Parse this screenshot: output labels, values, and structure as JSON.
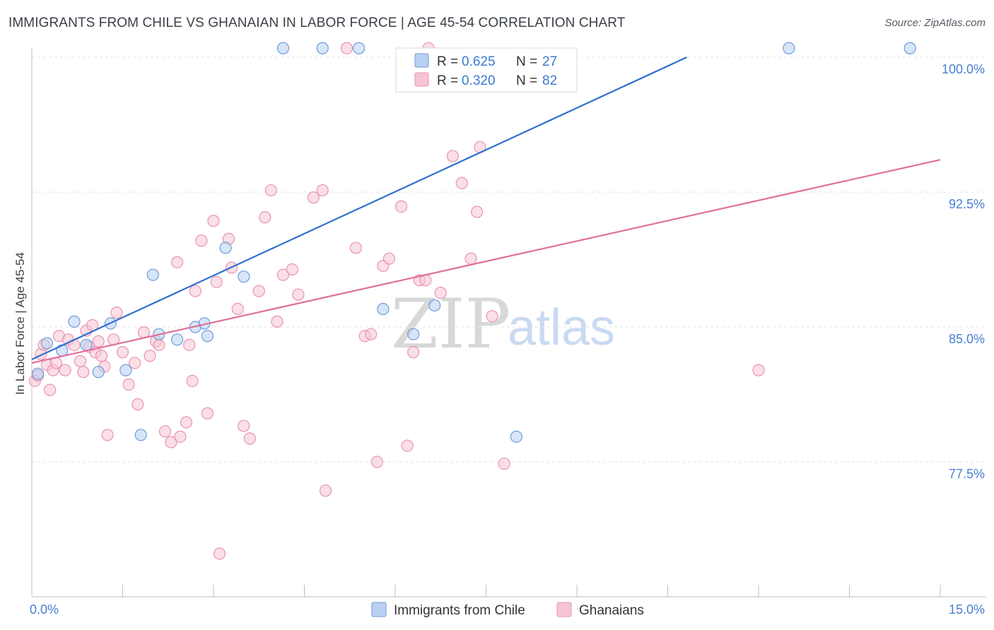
{
  "header": {
    "title": "IMMIGRANTS FROM CHILE VS GHANAIAN IN LABOR FORCE | AGE 45-54 CORRELATION CHART",
    "source": "Source: ZipAtlas.com"
  },
  "watermark": {
    "zip": "ZIP",
    "atlas": "atlas"
  },
  "legend": {
    "series": [
      {
        "r_label": "R =",
        "r_value": "0.625",
        "n_label": "N =",
        "n_value": "27"
      },
      {
        "r_label": "R =",
        "r_value": "0.320",
        "n_label": "N =",
        "n_value": "82"
      }
    ]
  },
  "chart_data": {
    "type": "scatter",
    "title": "IMMIGRANTS FROM CHILE VS GHANAIAN IN LABOR FORCE | AGE 45-54 CORRELATION CHART",
    "xlabel": "",
    "ylabel": "In Labor Force | Age 45-54",
    "xlim": [
      0,
      15
    ],
    "ylim": [
      71.5,
      101
    ],
    "x_tick_labels": [
      {
        "value": 0,
        "label": "0.0%"
      },
      {
        "value": 15,
        "label": "15.0%"
      }
    ],
    "y_ticks": [
      {
        "value": 77.5,
        "label": "77.5%"
      },
      {
        "value": 85.0,
        "label": "85.0%"
      },
      {
        "value": 92.5,
        "label": "92.5%"
      },
      {
        "value": 100.0,
        "label": "100.0%"
      }
    ],
    "grid": true,
    "legend_position": "top-center",
    "colors": {
      "chile_fill": "#b8d0f2",
      "chile_stroke": "#6f9bd8",
      "chile_line": "#2f6fd0",
      "ghana_fill": "#f6c4d4",
      "ghana_stroke": "#e994b0",
      "ghana_line": "#e0709a"
    },
    "series": [
      {
        "name": "Immigrants from Chile",
        "r": 0.625,
        "n": 27,
        "trend": {
          "x0": 0.0,
          "y0": 83.2,
          "x1": 15.0,
          "y1": 106.5
        },
        "points": [
          [
            0.1,
            82.4
          ],
          [
            0.25,
            84.1
          ],
          [
            0.5,
            83.7
          ],
          [
            0.7,
            85.3
          ],
          [
            0.9,
            84.0
          ],
          [
            1.1,
            82.5
          ],
          [
            1.3,
            85.2
          ],
          [
            1.55,
            82.6
          ],
          [
            1.8,
            79.0
          ],
          [
            2.0,
            87.9
          ],
          [
            2.1,
            84.6
          ],
          [
            2.4,
            84.3
          ],
          [
            2.7,
            85.0
          ],
          [
            2.85,
            85.2
          ],
          [
            2.9,
            84.5
          ],
          [
            3.2,
            89.4
          ],
          [
            3.5,
            87.8
          ],
          [
            4.15,
            100.5
          ],
          [
            4.8,
            100.5
          ],
          [
            5.4,
            100.5
          ],
          [
            5.8,
            86.0
          ],
          [
            6.3,
            84.6
          ],
          [
            6.65,
            86.2
          ],
          [
            7.3,
            98.5
          ],
          [
            8.0,
            78.9
          ],
          [
            12.5,
            100.5
          ],
          [
            14.5,
            100.5
          ]
        ]
      },
      {
        "name": "Ghanaians",
        "r": 0.32,
        "n": 82,
        "trend": {
          "x0": 0.0,
          "y0": 83.0,
          "x1": 15.0,
          "y1": 94.3
        },
        "points": [
          [
            0.05,
            82.0
          ],
          [
            0.1,
            82.3
          ],
          [
            0.15,
            83.5
          ],
          [
            0.2,
            84.0
          ],
          [
            0.25,
            82.9
          ],
          [
            0.3,
            81.5
          ],
          [
            0.45,
            84.5
          ],
          [
            0.55,
            82.6
          ],
          [
            0.6,
            84.3
          ],
          [
            0.7,
            84.0
          ],
          [
            0.8,
            83.1
          ],
          [
            0.9,
            84.8
          ],
          [
            0.95,
            83.9
          ],
          [
            1.0,
            85.1
          ],
          [
            1.05,
            83.6
          ],
          [
            1.15,
            83.4
          ],
          [
            1.2,
            82.8
          ],
          [
            1.25,
            79.0
          ],
          [
            1.35,
            84.3
          ],
          [
            1.4,
            85.8
          ],
          [
            1.5,
            83.6
          ],
          [
            1.6,
            81.8
          ],
          [
            1.75,
            80.7
          ],
          [
            1.85,
            84.7
          ],
          [
            1.95,
            83.4
          ],
          [
            2.05,
            84.2
          ],
          [
            2.1,
            84.0
          ],
          [
            2.2,
            79.2
          ],
          [
            2.3,
            78.6
          ],
          [
            2.4,
            88.6
          ],
          [
            2.45,
            78.9
          ],
          [
            2.55,
            79.7
          ],
          [
            2.65,
            82.0
          ],
          [
            2.7,
            87.0
          ],
          [
            2.8,
            89.8
          ],
          [
            2.9,
            80.2
          ],
          [
            3.0,
            90.9
          ],
          [
            3.05,
            87.5
          ],
          [
            3.1,
            72.4
          ],
          [
            3.25,
            89.9
          ],
          [
            3.3,
            88.3
          ],
          [
            3.4,
            86.0
          ],
          [
            3.5,
            79.5
          ],
          [
            3.6,
            78.8
          ],
          [
            3.75,
            87.0
          ],
          [
            3.85,
            91.1
          ],
          [
            3.95,
            92.6
          ],
          [
            4.05,
            85.3
          ],
          [
            4.15,
            87.9
          ],
          [
            4.3,
            88.2
          ],
          [
            4.4,
            86.8
          ],
          [
            4.65,
            92.2
          ],
          [
            4.8,
            92.6
          ],
          [
            4.85,
            75.9
          ],
          [
            5.2,
            100.5
          ],
          [
            5.35,
            89.4
          ],
          [
            5.5,
            84.5
          ],
          [
            5.6,
            84.6
          ],
          [
            5.7,
            77.5
          ],
          [
            5.8,
            88.4
          ],
          [
            5.9,
            88.8
          ],
          [
            6.1,
            91.7
          ],
          [
            6.2,
            78.4
          ],
          [
            6.3,
            83.6
          ],
          [
            6.4,
            87.6
          ],
          [
            6.5,
            87.6
          ],
          [
            6.55,
            100.5
          ],
          [
            6.75,
            86.9
          ],
          [
            6.95,
            94.5
          ],
          [
            7.1,
            93.0
          ],
          [
            7.25,
            88.8
          ],
          [
            7.35,
            91.4
          ],
          [
            7.4,
            95.0
          ],
          [
            7.6,
            85.6
          ],
          [
            7.8,
            77.4
          ],
          [
            12.0,
            82.6
          ],
          [
            1.1,
            84.2
          ],
          [
            0.35,
            82.6
          ],
          [
            0.4,
            83.0
          ],
          [
            2.6,
            84.0
          ],
          [
            1.7,
            83.0
          ],
          [
            0.85,
            82.5
          ]
        ]
      }
    ]
  },
  "bottom_legend": [
    {
      "label": "Immigrants from Chile"
    },
    {
      "label": "Ghanaians"
    }
  ]
}
